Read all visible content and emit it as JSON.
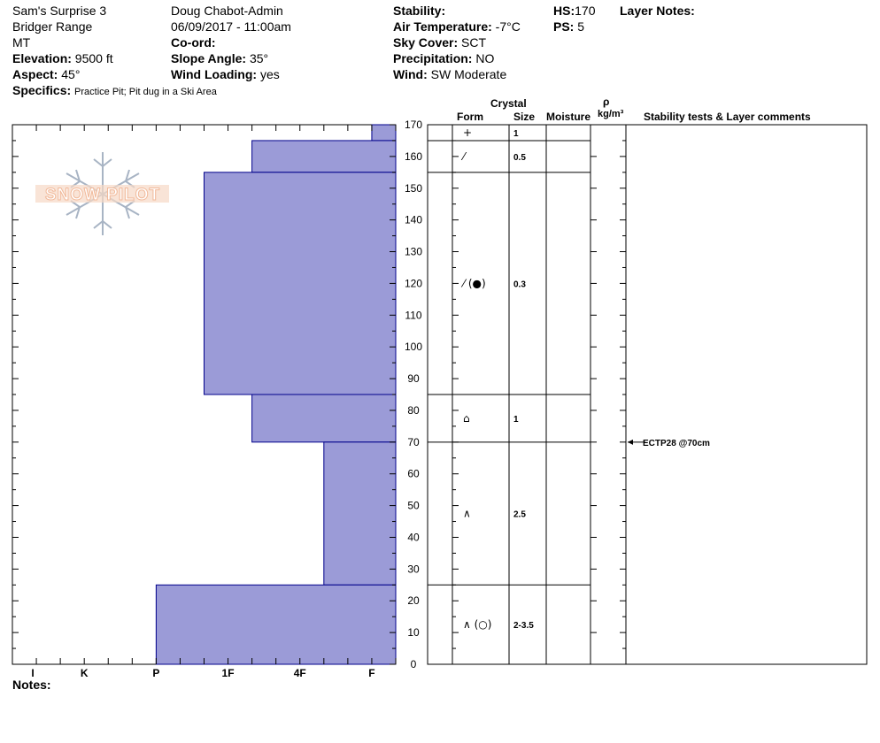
{
  "header": {
    "pit_name": "Sam's Surprise 3",
    "range": "Bridger Range",
    "state": "MT",
    "elevation_label": "Elevation:",
    "elevation_value": "9500 ft",
    "aspect_label": "Aspect:",
    "aspect_value": "45°",
    "specifics_label": "Specifics:",
    "specifics_value": "Practice Pit; Pit dug in a Ski Area",
    "observer": "Doug Chabot-Admin",
    "datetime": "06/09/2017 - 11:00am",
    "coord_label": "Co-ord:",
    "slope_label": "Slope Angle:",
    "slope_value": "35°",
    "wind_loading_label": "Wind Loading:",
    "wind_loading_value": "yes",
    "stability_label": "Stability:",
    "air_temp_label": "Air Temperature:",
    "air_temp_value": "-7°C",
    "sky_label": "Sky Cover:",
    "sky_value": "SCT",
    "precip_label": "Precipitation:",
    "precip_value": "NO",
    "wind_label": "Wind:",
    "wind_value": "SW Moderate",
    "hs_label": "HS:",
    "hs_value": "170",
    "ps_label": "PS:",
    "ps_value": "5",
    "layer_notes_label": "Layer Notes:"
  },
  "logo": {
    "text": "SNOW PILOT"
  },
  "notes_label": "Notes:",
  "columns": {
    "crystal": "Crystal",
    "form": "Form",
    "size": "Size",
    "moisture": "Moisture",
    "rho": "ρ",
    "density_unit": "kg/m³",
    "stability": "Stability tests & Layer comments"
  },
  "colors": {
    "bar_fill": "#9b9bd7",
    "bar_stroke": "#00008b",
    "logo_text": "#f1b99a",
    "logo_flake": "#a8b4c4"
  },
  "chart_data": {
    "type": "bar",
    "orientation": "horizontal",
    "ylabel": "",
    "ylim": [
      0,
      170
    ],
    "y_ticks": [
      0,
      10,
      20,
      30,
      40,
      50,
      60,
      70,
      80,
      90,
      100,
      110,
      120,
      130,
      140,
      150,
      160,
      170
    ],
    "x_categories": [
      "I",
      "K",
      "P",
      "1F",
      "4F",
      "F"
    ],
    "hardness_levels": [
      "I",
      "K-",
      "K",
      "K+",
      "P-",
      "P",
      "P+",
      "1F-",
      "1F",
      "1F+",
      "4F-",
      "4F",
      "4F+",
      "F-",
      "F",
      "F+"
    ],
    "layers": [
      {
        "bottom": 165,
        "top": 170,
        "hardness": "F",
        "form": "+",
        "size": "1"
      },
      {
        "bottom": 155,
        "top": 165,
        "hardness": "1F+",
        "form": "⁄",
        "size": "0.5"
      },
      {
        "bottom": 85,
        "top": 155,
        "hardness": "1F-",
        "form": "⁄ (●)",
        "size": "0.3"
      },
      {
        "bottom": 70,
        "top": 85,
        "hardness": "1F+",
        "form": "⌂",
        "size": "1"
      },
      {
        "bottom": 25,
        "top": 70,
        "hardness": "4F+",
        "form": "∧",
        "size": "2.5"
      },
      {
        "bottom": 0,
        "top": 25,
        "hardness": "P",
        "form": "∧ (○)",
        "size": "2-3.5"
      }
    ],
    "tests": [
      {
        "depth": 70,
        "label": "ECTP28 @70cm"
      }
    ]
  }
}
